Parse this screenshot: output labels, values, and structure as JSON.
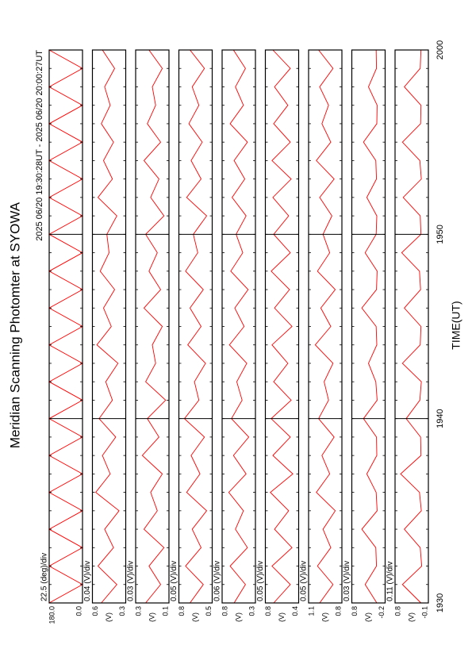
{
  "chart_data": {
    "type": "line",
    "title": "Meridian Scanning Photomter at SYOWA",
    "subtitle": "2025 06/20 19:30:28UT - 2025 06/20 20:00:27UT",
    "xlabel": "TIME(UT)",
    "color": "#ff0000",
    "grid": true,
    "x": [
      0,
      1,
      2,
      3,
      4,
      5,
      6,
      7,
      8,
      9,
      10,
      11,
      12,
      13,
      14,
      15,
      16,
      17,
      18,
      19,
      20,
      21,
      22,
      23,
      24,
      25,
      26,
      27,
      28,
      29,
      30
    ],
    "xlim": [
      0,
      30
    ],
    "xticks": [
      {
        "value": 0,
        "label": "1930"
      },
      {
        "value": 10,
        "label": "1940"
      },
      {
        "value": 20,
        "label": "1950"
      },
      {
        "value": 30,
        "label": "2000"
      }
    ],
    "panels": [
      {
        "scale": "22.5 (deg)/div",
        "ylim": [
          0,
          180
        ],
        "yticks": [
          {
            "value": 0,
            "label": "0.0"
          },
          {
            "value": 180,
            "label": "180.0"
          }
        ],
        "values": [
          180,
          0,
          180,
          0,
          180,
          0,
          180,
          0,
          180,
          0,
          180,
          0,
          180,
          0,
          180,
          0,
          180,
          0,
          180,
          0,
          180,
          0,
          180,
          0,
          180,
          0,
          180,
          0,
          180,
          0,
          180
        ]
      },
      {
        "scale": "0.04 (V)/div",
        "ylabel": "(V)",
        "ylim": [
          0.3,
          0.6
        ],
        "yticks": [
          0.3,
          0.6
        ],
        "values": [
          0.52,
          0.38,
          0.55,
          0.41,
          0.49,
          0.36,
          0.57,
          0.44,
          0.51,
          0.39,
          0.54,
          0.42,
          0.48,
          0.37,
          0.56,
          0.43,
          0.5,
          0.4,
          0.53,
          0.45,
          0.47,
          0.38,
          0.55,
          0.42,
          0.5,
          0.41,
          0.52,
          0.44,
          0.49,
          0.4,
          0.51
        ]
      },
      {
        "scale": "0.03 (V)/div",
        "ylabel": "(V)",
        "ylim": [
          0.1,
          0.3
        ],
        "yticks": [
          0.1,
          0.3
        ],
        "values": [
          0.24,
          0.15,
          0.22,
          0.13,
          0.25,
          0.17,
          0.21,
          0.14,
          0.26,
          0.16,
          0.23,
          0.12,
          0.24,
          0.18,
          0.2,
          0.14,
          0.25,
          0.15,
          0.22,
          0.17,
          0.24,
          0.13,
          0.21,
          0.16,
          0.25,
          0.15,
          0.23,
          0.18,
          0.2,
          0.14,
          0.22
        ]
      },
      {
        "scale": "0.05 (V)/div",
        "ylabel": "(V)",
        "ylim": [
          0.5,
          0.8
        ],
        "yticks": [
          0.5,
          0.8
        ],
        "values": [
          0.7,
          0.58,
          0.74,
          0.6,
          0.68,
          0.55,
          0.73,
          0.61,
          0.69,
          0.57,
          0.75,
          0.62,
          0.66,
          0.56,
          0.72,
          0.6,
          0.7,
          0.58,
          0.74,
          0.63,
          0.67,
          0.55,
          0.73,
          0.6,
          0.69,
          0.59,
          0.71,
          0.62,
          0.68,
          0.57,
          0.7
        ]
      },
      {
        "scale": "0.06 (V)/div",
        "ylabel": "(V)",
        "ylim": [
          0.3,
          0.8
        ],
        "yticks": [
          0.3,
          0.8
        ],
        "values": [
          0.62,
          0.45,
          0.68,
          0.42,
          0.6,
          0.48,
          0.7,
          0.44,
          0.63,
          0.4,
          0.66,
          0.5,
          0.58,
          0.43,
          0.69,
          0.47,
          0.61,
          0.41,
          0.67,
          0.49,
          0.59,
          0.44,
          0.65,
          0.46,
          0.62,
          0.42,
          0.68,
          0.48,
          0.6,
          0.45,
          0.63
        ]
      },
      {
        "scale": "0.05 (V)/div",
        "ylabel": "(V)",
        "ylim": [
          0.4,
          0.8
        ],
        "yticks": [
          0.4,
          0.8
        ],
        "values": [
          0.7,
          0.5,
          0.72,
          0.48,
          0.69,
          0.52,
          0.74,
          0.47,
          0.71,
          0.5,
          0.73,
          0.49,
          0.7,
          0.53,
          0.72,
          0.48,
          0.69,
          0.51,
          0.73,
          0.5,
          0.7,
          0.52,
          0.71,
          0.49,
          0.72,
          0.5,
          0.7,
          0.53,
          0.69,
          0.5,
          0.71
        ]
      },
      {
        "scale": "0.05 (V)/div",
        "ylabel": "(V)",
        "ylim": [
          0.8,
          1.1
        ],
        "yticks": [
          0.8,
          1.1
        ],
        "values": [
          1.0,
          0.88,
          1.02,
          0.9,
          0.97,
          0.86,
          1.03,
          0.91,
          0.98,
          0.87,
          1.01,
          0.92,
          0.96,
          0.88,
          1.04,
          0.9,
          0.99,
          0.86,
          1.02,
          0.91,
          0.97,
          0.89,
          1.0,
          0.87,
          1.03,
          0.9,
          0.98,
          0.92,
          1.0,
          0.88,
          1.01
        ]
      },
      {
        "scale": "0.03 (V)/div",
        "ylabel": "(V)",
        "ylim": [
          -0.2,
          0.8
        ],
        "yticks": [
          -0.2,
          0.8
        ],
        "values": [
          0.05,
          0.4,
          0.06,
          0.08,
          0.5,
          0.04,
          0.07,
          0.35,
          0.05,
          0.06,
          0.45,
          0.04,
          0.08,
          0.3,
          0.05,
          0.07,
          0.5,
          0.06,
          0.04,
          0.4,
          0.07,
          0.05,
          0.35,
          0.06,
          0.08,
          0.45,
          0.05,
          0.04,
          0.3,
          0.06,
          0.07
        ]
      },
      {
        "scale": "0.11 (V)/div",
        "ylabel": "(V)",
        "ylim": [
          -0.1,
          0.8
        ],
        "yticks": [
          -0.1,
          0.8
        ],
        "values": [
          0.1,
          0.6,
          0.08,
          0.12,
          0.55,
          0.09,
          0.14,
          0.65,
          0.1,
          0.11,
          0.5,
          0.13,
          0.09,
          0.6,
          0.12,
          0.1,
          0.55,
          0.11,
          0.14,
          0.62,
          0.1,
          0.12,
          0.58,
          0.09,
          0.13,
          0.6,
          0.11,
          0.1,
          0.55,
          0.12,
          0.1
        ]
      }
    ]
  }
}
